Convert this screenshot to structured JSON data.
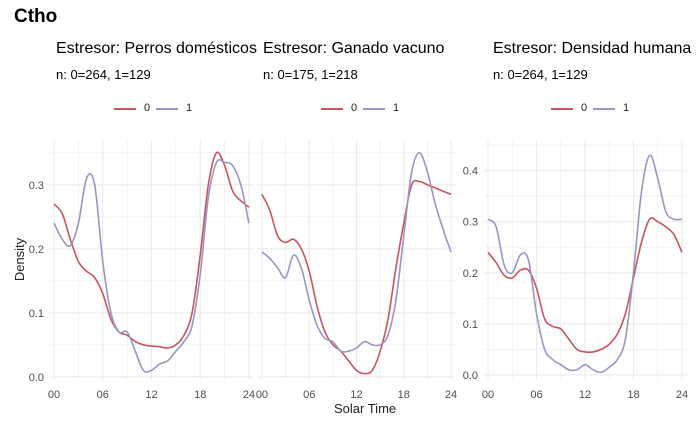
{
  "figure_title": "Ctho",
  "x_axis_label": "Solar Time",
  "y_axis_label": "Density",
  "colors": {
    "0": "#c8555d",
    "1": "#9896c6",
    "grid": "#ebebeb",
    "tick_text": "#4d4d4d"
  },
  "chart_data": [
    {
      "type": "line",
      "title": "Estresor: Perros domésticos",
      "subtitle": "n:  0=264, 1=129",
      "legend": [
        "0",
        "1"
      ],
      "legend_position": "top",
      "xlim": [
        -0.5,
        24.5
      ],
      "ylim": [
        -0.005,
        0.37
      ],
      "x_ticks": [
        "00",
        "06",
        "12",
        "18",
        "24"
      ],
      "y_ticks": [
        "0.0",
        "0.1",
        "0.2",
        "0.3"
      ],
      "grid": true,
      "series": [
        {
          "name": "0",
          "x": [
            0,
            1,
            2,
            3,
            4,
            5,
            6,
            7,
            8,
            9,
            10,
            11,
            12,
            13,
            14,
            15,
            16,
            17,
            18,
            19,
            20,
            21,
            22,
            23,
            24
          ],
          "y": [
            0.27,
            0.255,
            0.215,
            0.18,
            0.165,
            0.155,
            0.13,
            0.09,
            0.07,
            0.065,
            0.055,
            0.05,
            0.048,
            0.047,
            0.045,
            0.05,
            0.065,
            0.1,
            0.19,
            0.3,
            0.35,
            0.33,
            0.29,
            0.275,
            0.265
          ]
        },
        {
          "name": "1",
          "x": [
            0,
            1,
            2,
            3,
            4,
            5,
            6,
            7,
            8,
            9,
            10,
            11,
            12,
            13,
            14,
            15,
            16,
            17,
            18,
            19,
            20,
            21,
            22,
            23,
            24
          ],
          "y": [
            0.24,
            0.215,
            0.205,
            0.24,
            0.31,
            0.3,
            0.18,
            0.1,
            0.07,
            0.07,
            0.04,
            0.01,
            0.01,
            0.02,
            0.025,
            0.04,
            0.055,
            0.08,
            0.16,
            0.28,
            0.335,
            0.335,
            0.33,
            0.3,
            0.24
          ]
        }
      ]
    },
    {
      "type": "line",
      "title": "Estresor: Ganado vacuno",
      "subtitle": "n:  0=175, 1=218",
      "legend": [
        "0",
        "1"
      ],
      "legend_position": "top",
      "xlim": [
        -0.5,
        24.5
      ],
      "ylim": [
        -0.005,
        0.37
      ],
      "x_ticks": [
        "00",
        "06",
        "12",
        "18",
        "24"
      ],
      "y_ticks": [],
      "grid": true,
      "series": [
        {
          "name": "0",
          "x": [
            0,
            1,
            2,
            3,
            4,
            5,
            6,
            7,
            8,
            9,
            10,
            11,
            12,
            13,
            14,
            15,
            16,
            17,
            18,
            19,
            20,
            21,
            22,
            23,
            24
          ],
          "y": [
            0.285,
            0.26,
            0.22,
            0.21,
            0.215,
            0.2,
            0.165,
            0.11,
            0.07,
            0.05,
            0.04,
            0.025,
            0.01,
            0.005,
            0.01,
            0.04,
            0.09,
            0.17,
            0.24,
            0.3,
            0.305,
            0.3,
            0.295,
            0.29,
            0.285
          ]
        },
        {
          "name": "1",
          "x": [
            0,
            1,
            2,
            3,
            4,
            5,
            6,
            7,
            8,
            9,
            10,
            11,
            12,
            13,
            14,
            15,
            16,
            17,
            18,
            19,
            20,
            21,
            22,
            23,
            24
          ],
          "y": [
            0.195,
            0.185,
            0.17,
            0.155,
            0.19,
            0.17,
            0.12,
            0.08,
            0.06,
            0.055,
            0.04,
            0.04,
            0.045,
            0.055,
            0.05,
            0.05,
            0.065,
            0.12,
            0.22,
            0.32,
            0.35,
            0.32,
            0.27,
            0.23,
            0.195
          ]
        }
      ]
    },
    {
      "type": "line",
      "title": "Estresor: Densidad humana",
      "subtitle": "n:  0=264, 1=129",
      "legend": [
        "0",
        "1"
      ],
      "legend_position": "top",
      "xlim": [
        -0.5,
        24.5
      ],
      "ylim": [
        -0.01,
        0.46
      ],
      "x_ticks": [
        "00",
        "06",
        "12",
        "18",
        "24"
      ],
      "y_ticks": [
        "0.0",
        "0.1",
        "0.2",
        "0.3",
        "0.4"
      ],
      "grid": true,
      "series": [
        {
          "name": "0",
          "x": [
            0,
            1,
            2,
            3,
            4,
            5,
            6,
            7,
            8,
            9,
            10,
            11,
            12,
            13,
            14,
            15,
            16,
            17,
            18,
            19,
            20,
            21,
            22,
            23,
            24
          ],
          "y": [
            0.24,
            0.22,
            0.195,
            0.19,
            0.205,
            0.205,
            0.17,
            0.11,
            0.095,
            0.09,
            0.07,
            0.05,
            0.045,
            0.045,
            0.05,
            0.06,
            0.08,
            0.12,
            0.19,
            0.26,
            0.305,
            0.3,
            0.29,
            0.275,
            0.24
          ]
        },
        {
          "name": "1",
          "x": [
            0,
            1,
            2,
            3,
            4,
            5,
            6,
            7,
            8,
            9,
            10,
            11,
            12,
            13,
            14,
            15,
            16,
            17,
            18,
            19,
            20,
            21,
            22,
            23,
            24
          ],
          "y": [
            0.305,
            0.29,
            0.215,
            0.2,
            0.235,
            0.225,
            0.12,
            0.05,
            0.03,
            0.02,
            0.01,
            0.01,
            0.02,
            0.01,
            0.005,
            0.015,
            0.03,
            0.07,
            0.2,
            0.36,
            0.43,
            0.385,
            0.32,
            0.305,
            0.305
          ]
        }
      ]
    }
  ]
}
